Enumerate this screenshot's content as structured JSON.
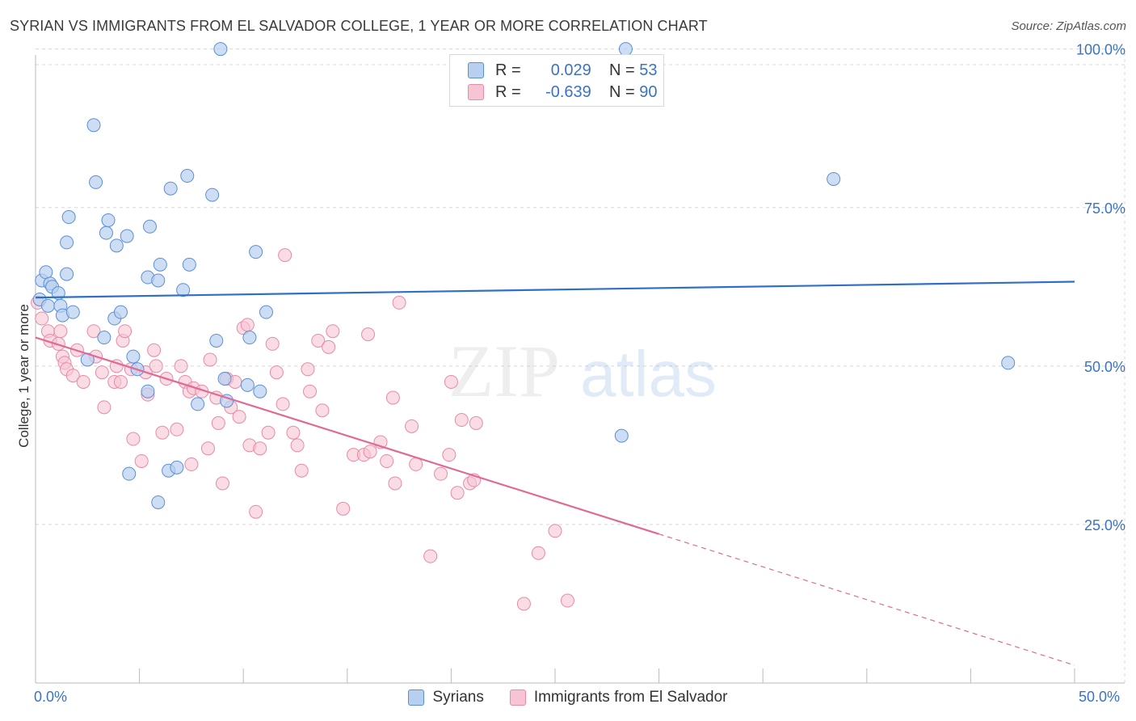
{
  "header": {
    "title": "SYRIAN VS IMMIGRANTS FROM EL SALVADOR COLLEGE, 1 YEAR OR MORE CORRELATION CHART",
    "source": "Source: ZipAtlas.com"
  },
  "watermark": {
    "zip": "ZIP",
    "atlas": "atlas"
  },
  "colors": {
    "syrians_fill": "#b8d0f0",
    "syrians_stroke": "#5b8fd6",
    "syrians_line": "#2f6fc8",
    "elsal_fill": "#f6c4d3",
    "elsal_stroke": "#e88aa8",
    "elsal_line": "#e06a96",
    "tick_label": "#3a73c5",
    "grid": "#d8d8d8"
  },
  "legend": {
    "rows": [
      {
        "r_label": "R =",
        "r_value": "0.029",
        "n_label": "N =",
        "n_value": "53"
      },
      {
        "r_label": "R =",
        "r_value": "-0.639",
        "n_label": "N =",
        "n_value": "90"
      }
    ]
  },
  "bottom_legend": {
    "syrians": "Syrians",
    "elsalvador": "Immigrants from El Salvador"
  },
  "chart_data": {
    "type": "scatter",
    "title": "SYRIAN VS IMMIGRANTS FROM EL SALVADOR COLLEGE, 1 YEAR OR MORE CORRELATION CHART",
    "xlabel": "",
    "ylabel": "College, 1 year or more",
    "xlim": [
      0,
      50
    ],
    "ylim": [
      0,
      102
    ],
    "x_tick_labels": [
      "0.0%",
      "50.0%"
    ],
    "y_ticks": [
      25,
      50,
      75,
      100
    ],
    "y_tick_labels": [
      "25.0%",
      "50.0%",
      "75.0%",
      "100.0%"
    ],
    "grid": true,
    "legend_position": "top-center",
    "series": [
      {
        "name": "Syrians",
        "points": [
          [
            0.2,
            60.5
          ],
          [
            0.3,
            63.5
          ],
          [
            0.5,
            64.8
          ],
          [
            0.7,
            63.0
          ],
          [
            0.8,
            62.5
          ],
          [
            0.6,
            59.5
          ],
          [
            1.1,
            61.5
          ],
          [
            1.2,
            59.5
          ],
          [
            1.3,
            58.0
          ],
          [
            1.8,
            58.5
          ],
          [
            1.5,
            64.5
          ],
          [
            1.6,
            73.5
          ],
          [
            1.5,
            69.5
          ],
          [
            2.8,
            88.0
          ],
          [
            2.9,
            79.0
          ],
          [
            3.4,
            71.0
          ],
          [
            3.5,
            73.0
          ],
          [
            3.9,
            69.0
          ],
          [
            4.4,
            70.5
          ],
          [
            5.4,
            64.0
          ],
          [
            5.5,
            72.0
          ],
          [
            5.9,
            63.5
          ],
          [
            6.0,
            66.0
          ],
          [
            6.5,
            78.0
          ],
          [
            7.1,
            62.0
          ],
          [
            7.3,
            80.0
          ],
          [
            7.4,
            66.0
          ],
          [
            8.5,
            77.0
          ],
          [
            8.9,
            100.0
          ],
          [
            10.6,
            68.0
          ],
          [
            11.1,
            58.5
          ],
          [
            3.3,
            54.5
          ],
          [
            3.8,
            57.5
          ],
          [
            4.1,
            58.5
          ],
          [
            4.7,
            51.5
          ],
          [
            4.9,
            49.5
          ],
          [
            5.4,
            46.0
          ],
          [
            4.5,
            33.0
          ],
          [
            5.9,
            28.5
          ],
          [
            6.4,
            33.5
          ],
          [
            6.8,
            34.0
          ],
          [
            7.8,
            44.0
          ],
          [
            8.7,
            54.0
          ],
          [
            9.1,
            48.0
          ],
          [
            9.2,
            44.5
          ],
          [
            10.2,
            47.0
          ],
          [
            10.3,
            54.5
          ],
          [
            10.8,
            46.0
          ],
          [
            2.5,
            51.0
          ],
          [
            28.4,
            100.0
          ],
          [
            38.4,
            79.5
          ],
          [
            28.2,
            39.0
          ],
          [
            46.8,
            50.5
          ]
        ]
      },
      {
        "name": "Immigrants from El Salvador",
        "points": [
          [
            0.1,
            60.0
          ],
          [
            0.3,
            57.5
          ],
          [
            0.6,
            55.5
          ],
          [
            0.7,
            54.0
          ],
          [
            1.1,
            53.5
          ],
          [
            1.2,
            55.5
          ],
          [
            1.3,
            51.5
          ],
          [
            1.4,
            50.5
          ],
          [
            1.5,
            49.5
          ],
          [
            1.8,
            48.5
          ],
          [
            2.0,
            52.5
          ],
          [
            2.3,
            47.5
          ],
          [
            2.8,
            55.5
          ],
          [
            2.9,
            51.5
          ],
          [
            3.2,
            49.0
          ],
          [
            3.3,
            43.5
          ],
          [
            3.8,
            47.5
          ],
          [
            3.9,
            50.0
          ],
          [
            4.1,
            47.5
          ],
          [
            4.2,
            54.0
          ],
          [
            4.3,
            55.5
          ],
          [
            4.6,
            49.5
          ],
          [
            4.7,
            38.5
          ],
          [
            5.1,
            35.0
          ],
          [
            5.3,
            49.0
          ],
          [
            5.4,
            45.5
          ],
          [
            5.7,
            52.5
          ],
          [
            6.1,
            39.5
          ],
          [
            6.3,
            48.0
          ],
          [
            6.8,
            40.0
          ],
          [
            7.0,
            50.0
          ],
          [
            7.2,
            47.5
          ],
          [
            7.4,
            46.0
          ],
          [
            7.5,
            34.5
          ],
          [
            7.6,
            46.5
          ],
          [
            8.0,
            46.0
          ],
          [
            8.3,
            37.0
          ],
          [
            8.4,
            51.0
          ],
          [
            8.7,
            45.0
          ],
          [
            8.8,
            41.0
          ],
          [
            9.0,
            31.5
          ],
          [
            9.2,
            48.0
          ],
          [
            9.4,
            43.5
          ],
          [
            9.6,
            47.5
          ],
          [
            9.8,
            42.0
          ],
          [
            10.0,
            56.0
          ],
          [
            10.2,
            56.5
          ],
          [
            10.3,
            37.5
          ],
          [
            10.6,
            27.0
          ],
          [
            10.8,
            37.0
          ],
          [
            11.2,
            39.5
          ],
          [
            11.4,
            53.5
          ],
          [
            11.6,
            49.0
          ],
          [
            11.9,
            44.0
          ],
          [
            12.0,
            67.5
          ],
          [
            12.4,
            39.5
          ],
          [
            12.6,
            37.5
          ],
          [
            12.8,
            33.5
          ],
          [
            13.1,
            49.5
          ],
          [
            13.2,
            46.0
          ],
          [
            13.6,
            54.0
          ],
          [
            13.8,
            43.0
          ],
          [
            14.1,
            53.0
          ],
          [
            14.3,
            55.5
          ],
          [
            14.8,
            27.5
          ],
          [
            15.3,
            36.0
          ],
          [
            15.8,
            36.0
          ],
          [
            16.0,
            55.0
          ],
          [
            16.1,
            36.5
          ],
          [
            16.6,
            38.0
          ],
          [
            16.9,
            35.0
          ],
          [
            17.3,
            31.5
          ],
          [
            17.2,
            45.0
          ],
          [
            17.5,
            60.0
          ],
          [
            18.1,
            40.5
          ],
          [
            18.3,
            34.5
          ],
          [
            19.0,
            20.0
          ],
          [
            19.5,
            33.0
          ],
          [
            19.9,
            36.0
          ],
          [
            20.0,
            47.5
          ],
          [
            20.3,
            30.0
          ],
          [
            20.5,
            41.5
          ],
          [
            20.9,
            31.5
          ],
          [
            21.1,
            32.0
          ],
          [
            21.2,
            41.0
          ],
          [
            23.5,
            12.5
          ],
          [
            24.2,
            20.5
          ],
          [
            25.0,
            24.0
          ],
          [
            25.6,
            13.0
          ],
          [
            5.8,
            50.0
          ]
        ]
      }
    ],
    "trend_lines": [
      {
        "name": "Syrians",
        "x": [
          0,
          50
        ],
        "y": [
          60.8,
          63.3
        ],
        "style": "solid"
      },
      {
        "name": "Immigrants from El Salvador",
        "x": [
          0,
          30,
          50
        ],
        "y": [
          54.5,
          23.5,
          2.8
        ],
        "style": "solid-then-dashed"
      }
    ]
  }
}
